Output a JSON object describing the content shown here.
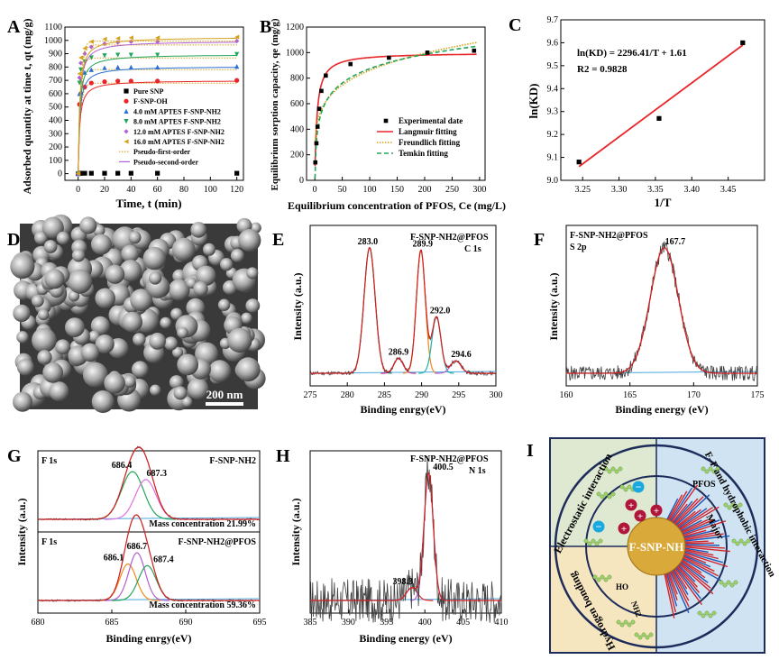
{
  "colors": {
    "black": "#000000",
    "red": "#e8262a",
    "blue": "#2a6fd6",
    "green": "#22a55a",
    "purple": "#b060d0",
    "gold": "#d6a21c",
    "pink": "#e070e0",
    "darkgreen": "#2e8b57",
    "orange": "#f08a1c",
    "cyan": "#28b4e0",
    "teal": "#20b2aa",
    "magenta": "#c0308a",
    "baseline": "#4aa8e0",
    "envelope": "#d62020",
    "raw": "#404040",
    "panelI_left": "#dfe9d2",
    "panelI_bottom": "#f6e6c0",
    "panelI_right": "#cfe3f2",
    "navy": "#1d2c5a"
  },
  "panel_labels": [
    "A",
    "B",
    "C",
    "D",
    "E",
    "F",
    "G",
    "H",
    "I"
  ],
  "chart_data": [
    {
      "id": "A",
      "type": "scatter",
      "xlabel": "Time, t (min)",
      "ylabel": "Adsorbed quantity at time t, qt (mg/g)",
      "xlim": [
        -10,
        125
      ],
      "ylim": [
        -50,
        1100
      ],
      "xticks": [
        0,
        20,
        40,
        60,
        80,
        100,
        120
      ],
      "yticks": [
        0,
        100,
        200,
        300,
        400,
        500,
        600,
        700,
        800,
        900,
        1000,
        1100
      ],
      "x": [
        0,
        1,
        2,
        5,
        10,
        20,
        30,
        40,
        60,
        120
      ],
      "series": [
        {
          "name": "Pure SNP",
          "marker": "square",
          "color": "black",
          "values": [
            0,
            2,
            3,
            3,
            3,
            3,
            3,
            3,
            3,
            3
          ]
        },
        {
          "name": "F-SNP-OH",
          "marker": "circle",
          "color": "red",
          "values": [
            0,
            520,
            600,
            650,
            680,
            690,
            695,
            695,
            695,
            700
          ]
        },
        {
          "name": "4.0 mM APTES F-SNP-NH2",
          "marker": "triangle-up",
          "color": "blue",
          "values": [
            0,
            600,
            700,
            760,
            780,
            795,
            800,
            800,
            800,
            805
          ]
        },
        {
          "name": "8.0 mM APTES F-SNP-NH2",
          "marker": "triangle-down",
          "color": "green",
          "values": [
            0,
            680,
            780,
            840,
            870,
            885,
            890,
            890,
            890,
            895
          ]
        },
        {
          "name": "12.0 mM APTES F-SNP-NH2",
          "marker": "diamond",
          "color": "purple",
          "values": [
            0,
            720,
            830,
            900,
            950,
            975,
            985,
            990,
            990,
            995
          ]
        },
        {
          "name": "16.0 mM APTES F-SNP-NH2",
          "marker": "triangle-left",
          "color": "gold",
          "values": [
            0,
            750,
            870,
            940,
            990,
            1010,
            1015,
            1020,
            1020,
            1025
          ]
        }
      ],
      "fits": [
        {
          "name": "Pseudo-first-order",
          "style": "dotted",
          "color": "gold"
        },
        {
          "name": "Pseudo-second-order",
          "style": "solid",
          "color": "purple"
        }
      ]
    },
    {
      "id": "B",
      "type": "scatter",
      "xlabel": "Equilibrium concentration of PFOS, Ce (mg/L)",
      "ylabel": "Equilibrium sorption capacity, qe (mg/g)",
      "xlim": [
        -15,
        310
      ],
      "ylim": [
        0,
        1200
      ],
      "xticks": [
        0,
        50,
        100,
        150,
        200,
        250,
        300
      ],
      "yticks": [
        0,
        200,
        400,
        600,
        800,
        1000,
        1200
      ],
      "points": {
        "x": [
          1,
          3,
          5,
          8,
          12,
          20,
          65,
          135,
          205,
          290
        ],
        "y": [
          140,
          290,
          420,
          560,
          700,
          820,
          910,
          960,
          1000,
          1015
        ]
      },
      "fits": [
        {
          "name": "Langmuir fitting",
          "style": "solid",
          "color": "red",
          "qmax": 1000,
          "K": 0.25,
          "kind": "langmuir"
        },
        {
          "name": "Freundlich fitting",
          "style": "dotted",
          "color": "gold",
          "kind": "freundlich",
          "Kf": 330,
          "n": 4.8
        },
        {
          "name": "Temkin fitting",
          "style": "dashed",
          "color": "green",
          "kind": "temkin",
          "A": 2.2,
          "B": 162
        }
      ],
      "legend": [
        "Experimental date",
        "Langmuir fitting",
        "Freundlich fitting",
        "Temkin fitting"
      ]
    },
    {
      "id": "C",
      "type": "scatter",
      "xlabel": "1/T",
      "ylabel": "ln(KD)",
      "xlim": [
        3.22,
        3.5
      ],
      "ylim": [
        9.0,
        9.7
      ],
      "xticks": [
        3.25,
        3.3,
        3.35,
        3.4,
        3.45
      ],
      "yticks": [
        9.0,
        9.1,
        9.2,
        9.3,
        9.4,
        9.5,
        9.6,
        9.7
      ],
      "points": {
        "x": [
          3.245,
          3.355,
          3.47
        ],
        "y": [
          9.08,
          9.27,
          9.6
        ]
      },
      "fit_line": {
        "x": [
          3.245,
          3.47
        ],
        "y": [
          9.06,
          9.59
        ]
      },
      "equation": "ln(KD) = 2296.41/T + 1.61",
      "r2": "R2 = 0.9828"
    },
    {
      "id": "E",
      "type": "line",
      "title": "F-SNP-NH2@PFOS",
      "subtitle": "C 1s",
      "xlabel": "Binding enrgy(eV)",
      "ylabel": "Intensity (a.u.)",
      "xlim": [
        275,
        300
      ],
      "xticks": [
        275,
        280,
        285,
        290,
        295,
        300
      ],
      "peaks": [
        {
          "center": 283.0,
          "label": "283.0",
          "height": 1.0,
          "width": 0.75,
          "color": "darkgreen"
        },
        {
          "center": 286.9,
          "label": "286.9",
          "height": 0.12,
          "width": 0.6,
          "color": "magenta"
        },
        {
          "center": 289.9,
          "label": "289.9",
          "height": 0.98,
          "width": 0.6,
          "color": "orange"
        },
        {
          "center": 292.0,
          "label": "292.0",
          "height": 0.45,
          "width": 0.6,
          "color": "teal"
        },
        {
          "center": 294.6,
          "label": "294.6",
          "height": 0.1,
          "width": 0.7,
          "color": "purple"
        }
      ]
    },
    {
      "id": "F",
      "type": "line",
      "title": "F-SNP-NH2@PFOS",
      "subtitle": "S 2p",
      "xlabel": "Binding energy (eV)",
      "ylabel": "Intensity (a.u.)",
      "xlim": [
        160,
        175
      ],
      "xticks": [
        160,
        165,
        170,
        175
      ],
      "peaks": [
        {
          "center": 167.7,
          "label": "167.7",
          "height": 1.0,
          "width": 1.1,
          "color": "red"
        }
      ]
    },
    {
      "id": "G",
      "type": "line",
      "xlabel": "Binding enrgy(eV)",
      "ylabel": "Intensity (a.u.)",
      "xlim": [
        680,
        695
      ],
      "xticks": [
        680,
        685,
        690,
        695
      ],
      "subplots": [
        {
          "tag": "F 1s",
          "sample": "F-SNP-NH2",
          "mass": "Mass concentration 21.99%",
          "peaks": [
            {
              "center": 686.4,
              "label": "686.4",
              "height": 0.9,
              "width": 0.75,
              "color": "green"
            },
            {
              "center": 687.3,
              "label": "687.3",
              "height": 0.75,
              "width": 0.7,
              "color": "pink"
            }
          ]
        },
        {
          "tag": "F 1s",
          "sample": "F-SNP-NH2@PFOS",
          "mass": "Mass concentration 59.36%",
          "peaks": [
            {
              "center": 686.1,
              "label": "686.1",
              "height": 0.65,
              "width": 0.55,
              "color": "orange"
            },
            {
              "center": 686.7,
              "label": "686.7",
              "height": 0.85,
              "width": 0.55,
              "color": "purple"
            },
            {
              "center": 687.4,
              "label": "687.4",
              "height": 0.62,
              "width": 0.6,
              "color": "green"
            }
          ]
        }
      ]
    },
    {
      "id": "H",
      "type": "line",
      "title": "F-SNP-NH2@PFOS",
      "subtitle": "N 1s",
      "xlabel": "Binding energy (eV)",
      "ylabel": "Intensity (a.u.)",
      "xlim": [
        385,
        410
      ],
      "xticks": [
        385,
        390,
        395,
        400,
        405,
        410
      ],
      "peaks": [
        {
          "center": 398.3,
          "label": "398.3",
          "height": 0.1,
          "width": 0.7,
          "color": "red"
        },
        {
          "center": 400.5,
          "label": "400.5",
          "height": 1.0,
          "width": 0.6,
          "color": "purple"
        }
      ]
    }
  ],
  "text": {
    "A_legend": [
      "Pure SNP",
      "F-SNP-OH",
      "4.0 mM APTES F-SNP-NH2",
      "8.0 mM APTES F-SNP-NH2",
      "12.0 mM APTES F-SNP-NH2",
      "16.0 mM APTES F-SNP-NH2",
      "Pseudo-first-order",
      "Pseudo-second-order"
    ],
    "D_scalebar": "200 nm",
    "I_core": "F-SNP-NH",
    "I_pfos": "PFOS",
    "I_left": "Electrostatic interaction",
    "I_bottom": "Hydrogen bonding",
    "I_right": "F–F and hydrophobic interaction",
    "I_major": "Major",
    "I_ho": "HO",
    "I_nh2": "NH2"
  }
}
